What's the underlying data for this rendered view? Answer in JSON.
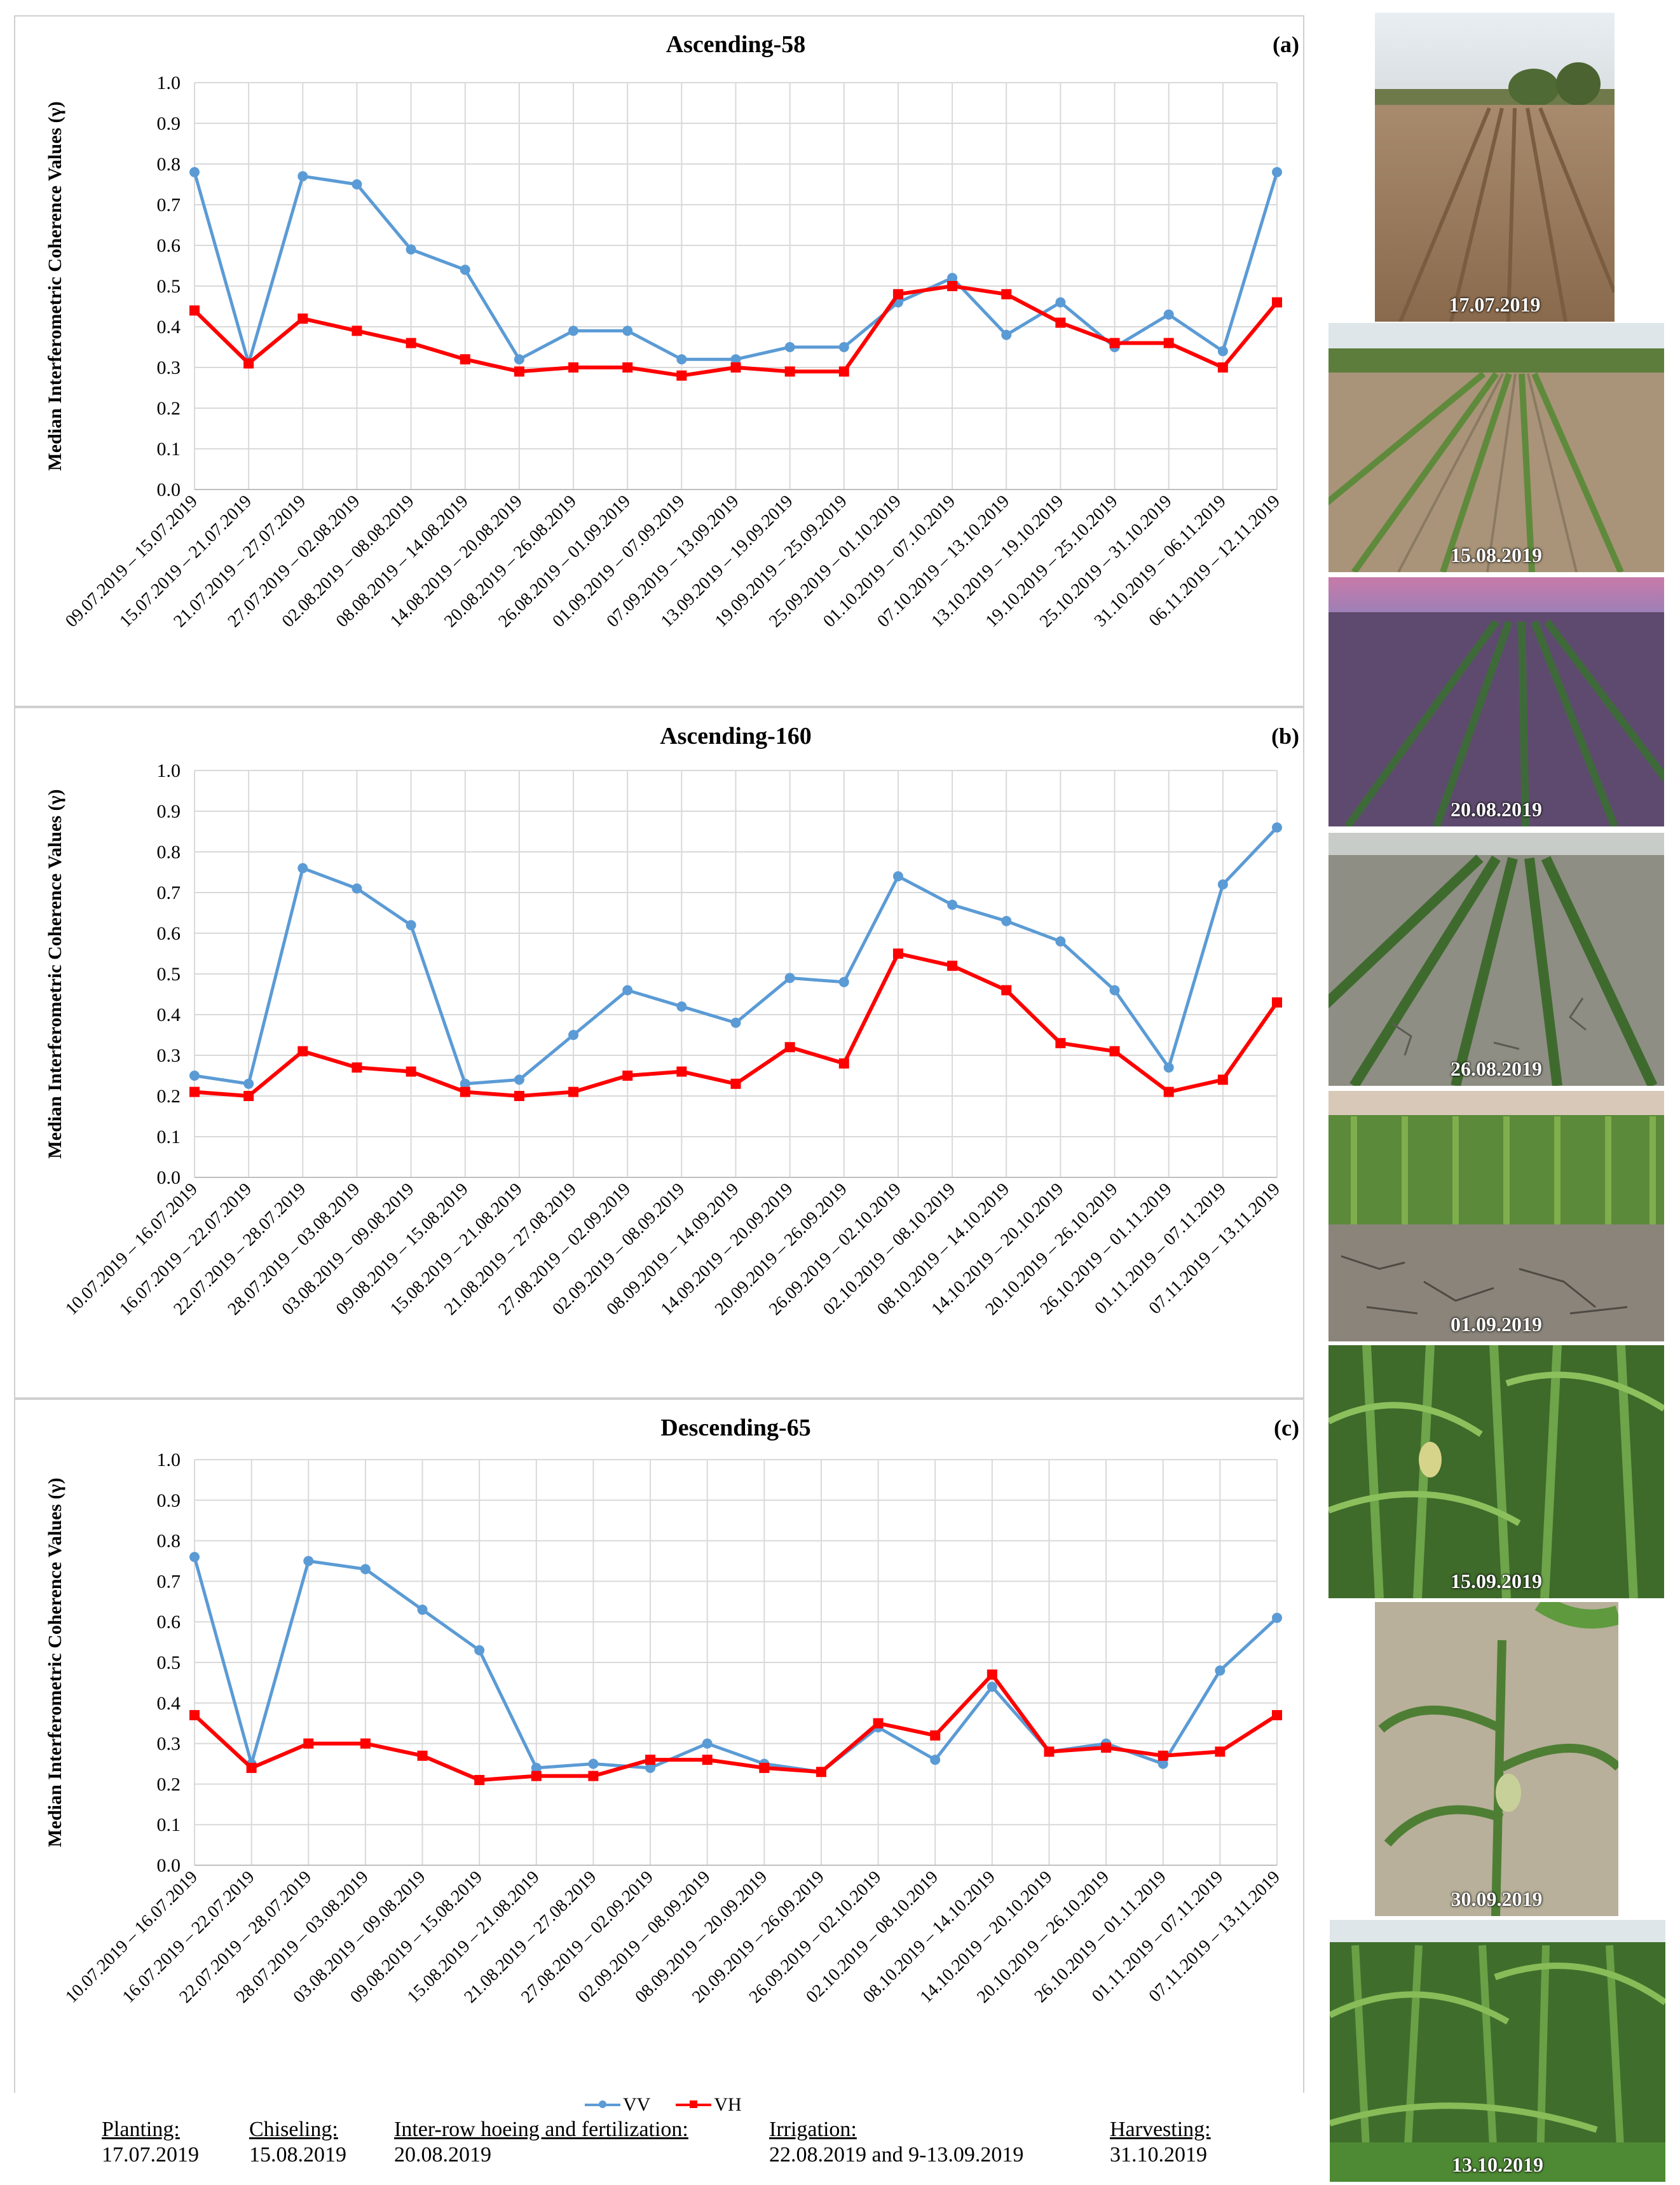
{
  "figure": {
    "legend": {
      "vv": "VV",
      "vh": "VH"
    },
    "events": [
      {
        "name": "Planting:",
        "date": "17.07.2019"
      },
      {
        "name": "Chiseling:",
        "date": "15.08.2019"
      },
      {
        "name": "Inter-row hoeing and fertilization:",
        "date": "20.08.2019"
      },
      {
        "name": "Irrigation:",
        "date": "22.08.2019 and 9-13.09.2019"
      },
      {
        "name": "Harvesting:",
        "date": "31.10.2019"
      }
    ],
    "photos": [
      {
        "date": "17.07.2019",
        "scene": "bare-soil"
      },
      {
        "date": "15.08.2019",
        "scene": "young-corn"
      },
      {
        "date": "20.08.2019",
        "scene": "dusk-corn"
      },
      {
        "date": "26.08.2019",
        "scene": "cracked-soil-corn"
      },
      {
        "date": "01.09.2019",
        "scene": "tall-corn-cracked"
      },
      {
        "date": "15.09.2019",
        "scene": "dense-corn"
      },
      {
        "date": "30.09.2019",
        "scene": "corn-closeup"
      },
      {
        "date": "13.10.2019",
        "scene": "mature-corn"
      }
    ]
  },
  "colors": {
    "vv": "#5B9BD5",
    "vh": "#FF0000",
    "grid": "#D9D9D9",
    "axis": "#BFBFBF"
  },
  "chart_data": [
    {
      "type": "line",
      "title": "Ascending-58",
      "panel": "(a)",
      "ylabel": "Median Interferometric Coherence Values (γ)",
      "ylim": [
        0,
        1.0
      ],
      "yticks": [
        "1.0",
        "0.9",
        "0.8",
        "0.7",
        "0.6",
        "0.5",
        "0.4",
        "0.3",
        "0.2",
        "0.1",
        "0.0"
      ],
      "grid": true,
      "categories": [
        "09.07.2019 – 15.07.2019",
        "15.07.2019 – 21.07.2019",
        "21.07.2019 – 27.07.2019",
        "27.07.2019 – 02.08.2019",
        "02.08.2019 – 08.08.2019",
        "08.08.2019 – 14.08.2019",
        "14.08.2019 – 20.08.2019",
        "20.08.2019 – 26.08.2019",
        "26.08.2019 – 01.09.2019",
        "01.09.2019 – 07.09.2019",
        "07.09.2019 – 13.09.2019",
        "13.09.2019 – 19.09.2019",
        "19.09.2019 – 25.09.2019",
        "25.09.2019 – 01.10.2019",
        "01.10.2019 – 07.10.2019",
        "07.10.2019 – 13.10.2019",
        "13.10.2019 – 19.10.2019",
        "19.10.2019 – 25.10.2019",
        "25.10.2019 – 31.10.2019",
        "31.10.2019 – 06.11.2019",
        "06.11.2019 – 12.11.2019"
      ],
      "series": [
        {
          "name": "VV",
          "values": [
            0.78,
            0.31,
            0.77,
            0.75,
            0.59,
            0.54,
            0.32,
            0.39,
            0.39,
            0.32,
            0.32,
            0.35,
            0.35,
            0.46,
            0.52,
            0.38,
            0.46,
            0.35,
            0.43,
            0.34,
            0.78
          ]
        },
        {
          "name": "VH",
          "values": [
            0.44,
            0.31,
            0.42,
            0.39,
            0.36,
            0.32,
            0.29,
            0.3,
            0.3,
            0.28,
            0.3,
            0.29,
            0.29,
            0.48,
            0.5,
            0.48,
            0.41,
            0.36,
            0.36,
            0.3,
            0.46
          ]
        }
      ]
    },
    {
      "type": "line",
      "title": "Ascending-160",
      "panel": "(b)",
      "ylabel": "Median Interferometric Coherence Values (γ)",
      "ylim": [
        0,
        1.0
      ],
      "yticks": [
        "1.0",
        "0.9",
        "0.8",
        "0.7",
        "0.6",
        "0.5",
        "0.4",
        "0.3",
        "0.2",
        "0.1",
        "0.0"
      ],
      "grid": true,
      "categories": [
        "10.07.2019 – 16.07.2019",
        "16.07.2019 – 22.07.2019",
        "22.07.2019 – 28.07.2019",
        "28.07.2019 – 03.08.2019",
        "03.08.2019 – 09.08.2019",
        "09.08.2019 – 15.08.2019",
        "15.08.2019 – 21.08.2019",
        "21.08.2019 – 27.08.2019",
        "27.08.2019 – 02.09.2019",
        "02.09.2019 – 08.09.2019",
        "08.09.2019 – 14.09.2019",
        "14.09.2019 – 20.09.2019",
        "20.09.2019 – 26.09.2019",
        "26.09.2019 – 02.10.2019",
        "02.10.2019 – 08.10.2019",
        "08.10.2019 – 14.10.2019",
        "14.10.2019 – 20.10.2019",
        "20.10.2019 – 26.10.2019",
        "26.10.2019 – 01.11.2019",
        "01.11.2019 – 07.11.2019",
        "07.11.2019 – 13.11.2019"
      ],
      "series": [
        {
          "name": "VV",
          "values": [
            0.25,
            0.23,
            0.76,
            0.71,
            0.62,
            0.23,
            0.24,
            0.35,
            0.46,
            0.42,
            0.38,
            0.49,
            0.48,
            0.74,
            0.67,
            0.63,
            0.58,
            0.46,
            0.27,
            0.72,
            0.86
          ]
        },
        {
          "name": "VH",
          "values": [
            0.21,
            0.2,
            0.31,
            0.27,
            0.26,
            0.21,
            0.2,
            0.21,
            0.25,
            0.26,
            0.23,
            0.32,
            0.28,
            0.55,
            0.52,
            0.46,
            0.33,
            0.31,
            0.21,
            0.24,
            0.43
          ]
        }
      ]
    },
    {
      "type": "line",
      "title": "Descending-65",
      "panel": "(c)",
      "ylabel": "Median Interferometric Coherence Values (γ)",
      "ylim": [
        0,
        1.0
      ],
      "yticks": [
        "1.0",
        "0.9",
        "0.8",
        "0.7",
        "0.6",
        "0.5",
        "0.4",
        "0.3",
        "0.2",
        "0.1",
        "0.0"
      ],
      "grid": true,
      "categories": [
        "10.07.2019 – 16.07.2019",
        "16.07.2019 – 22.07.2019",
        "22.07.2019 – 28.07.2019",
        "28.07.2019 – 03.08.2019",
        "03.08.2019 – 09.08.2019",
        "09.08.2019 – 15.08.2019",
        "15.08.2019 – 21.08.2019",
        "21.08.2019 – 27.08.2019",
        "27.08.2019 – 02.09.2019",
        "02.09.2019 – 08.09.2019",
        "08.09.2019 – 20.09.2019",
        "20.09.2019 – 26.09.2019",
        "26.09.2019 – 02.10.2019",
        "02.10.2019 – 08.10.2019",
        "08.10.2019 – 14.10.2019",
        "14.10.2019 – 20.10.2019",
        "20.10.2019 – 26.10.2019",
        "26.10.2019 – 01.11.2019",
        "01.11.2019 – 07.11.2019",
        "07.11.2019 – 13.11.2019"
      ],
      "series": [
        {
          "name": "VV",
          "values": [
            0.76,
            0.25,
            0.75,
            0.73,
            0.63,
            0.53,
            0.24,
            0.25,
            0.24,
            0.3,
            0.25,
            0.23,
            0.34,
            0.26,
            0.44,
            0.28,
            0.3,
            0.25,
            0.48,
            0.61
          ]
        },
        {
          "name": "VH",
          "values": [
            0.37,
            0.24,
            0.3,
            0.3,
            0.27,
            0.21,
            0.22,
            0.22,
            0.26,
            0.26,
            0.24,
            0.23,
            0.35,
            0.32,
            0.47,
            0.28,
            0.29,
            0.27,
            0.28,
            0.37
          ]
        }
      ]
    }
  ]
}
